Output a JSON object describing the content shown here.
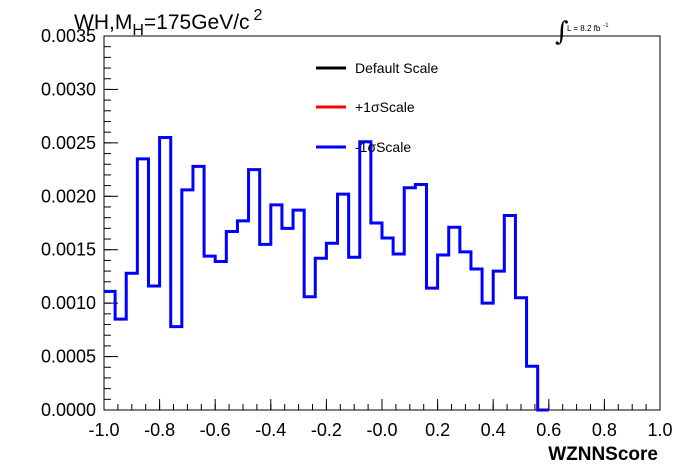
{
  "chart_data": {
    "type": "line",
    "title_main": "WH,M",
    "title_sub": "H",
    "title_rest": "=175GeV/c",
    "title_sup": "2",
    "lumi": {
      "integral_symbol": "∫",
      "text": "L = 8.2 fb",
      "sup": "-1"
    },
    "xlabel": "WZNNScore",
    "ylabel": "",
    "xlim": [
      -1.0,
      1.0
    ],
    "ylim": [
      0.0,
      0.0035
    ],
    "x_ticks": [
      "-1.0",
      "-0.8",
      "-0.6",
      "-0.4",
      "-0.2",
      "-0.0",
      "0.2",
      "0.4",
      "0.6",
      "0.8",
      "1.0"
    ],
    "y_ticks": [
      "0.0000",
      "0.0005",
      "0.0010",
      "0.0015",
      "0.0020",
      "0.0025",
      "0.0030",
      "0.0035"
    ],
    "legend": [
      {
        "name": "Default Scale",
        "color": "#000000"
      },
      {
        "name": "+1σScale",
        "color": "#ff0000"
      },
      {
        "name": "-1σScale",
        "color": "#0000ff"
      }
    ],
    "bin_edges_start": -1.0,
    "bin_width": 0.04,
    "series": [
      {
        "name": "-1σScale",
        "color": "#0000ff",
        "values": [
          0.00111,
          0.00085,
          0.00128,
          0.00235,
          0.00116,
          0.00255,
          0.00078,
          0.00206,
          0.00228,
          0.00144,
          0.00139,
          0.00167,
          0.00177,
          0.00225,
          0.00155,
          0.00192,
          0.0017,
          0.00187,
          0.00106,
          0.00142,
          0.00156,
          0.00202,
          0.00143,
          0.00251,
          0.00175,
          0.00161,
          0.00146,
          0.00208,
          0.00211,
          0.00114,
          0.00145,
          0.00171,
          0.00148,
          0.00132,
          0.001,
          0.0013,
          0.00182,
          0.00105,
          0.00041,
          0.0
        ]
      }
    ]
  }
}
